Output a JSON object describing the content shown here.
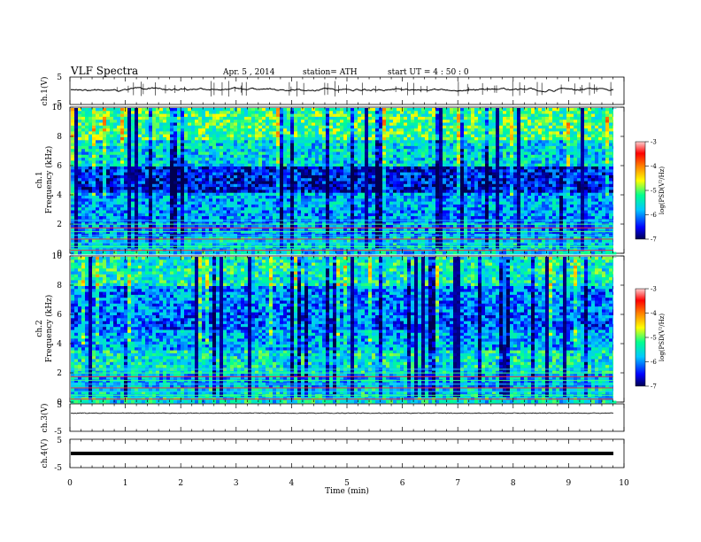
{
  "header": {
    "title": "VLF  Spectra",
    "date": "Apr. 5  , 2014",
    "station": "station= ATH",
    "start": "start  UT  =   4  : 50 : 0"
  },
  "chart_data": [
    {
      "type": "line",
      "panel": "ch1",
      "ylabel": "ch.1(V)",
      "ylim": [
        -5,
        5
      ],
      "yticks": [
        "5",
        "-5"
      ],
      "xlim": [
        0,
        10
      ],
      "description_free": true
    },
    {
      "type": "heatmap",
      "panel": "spec1",
      "ylabel": "ch.1",
      "ylabel2": "Frequency  (kHz)",
      "ylim": [
        0,
        10
      ],
      "yticks": [
        "0",
        "2",
        "4",
        "6",
        "8",
        "10"
      ],
      "xlim": [
        0,
        10
      ],
      "colorbar": {
        "label": "log(PSD(V²/Hz)",
        "ticks": [
          "-3",
          "-4",
          "-5",
          "-6",
          "-7"
        ],
        "range": [
          -7,
          -3
        ]
      }
    },
    {
      "type": "heatmap",
      "panel": "spec2",
      "ylabel": "ch.2",
      "ylabel2": "Frequency  (kHz)",
      "ylim": [
        0,
        10
      ],
      "yticks": [
        "0",
        "2",
        "4",
        "6",
        "8",
        "10"
      ],
      "xlim": [
        0,
        10
      ],
      "colorbar": {
        "label": "log(PSD(V²/Hz)",
        "ticks": [
          "-3",
          "-4",
          "-5",
          "-6",
          "-7"
        ],
        "range": [
          -7,
          -3
        ]
      }
    },
    {
      "type": "line",
      "panel": "ch3",
      "ylabel": "ch.3(V)",
      "ylim": [
        -5,
        5
      ],
      "yticks": [
        "5",
        "-5"
      ],
      "xlim": [
        0,
        10
      ]
    },
    {
      "type": "line",
      "panel": "ch4",
      "ylabel": "ch.4(V)",
      "ylim": [
        -5,
        5
      ],
      "yticks": [
        "5",
        "-5"
      ],
      "xlim": [
        0,
        10
      ]
    }
  ],
  "xaxis": {
    "label": "Time  (min)",
    "ticks": [
      "0",
      "1",
      "2",
      "3",
      "4",
      "5",
      "6",
      "7",
      "8",
      "9",
      "10"
    ]
  },
  "colors": {
    "scale": [
      "#000060",
      "#0000ff",
      "#00c8ff",
      "#00ff80",
      "#ffff00",
      "#ff8000",
      "#ff0000",
      "#ffc0c0"
    ]
  }
}
